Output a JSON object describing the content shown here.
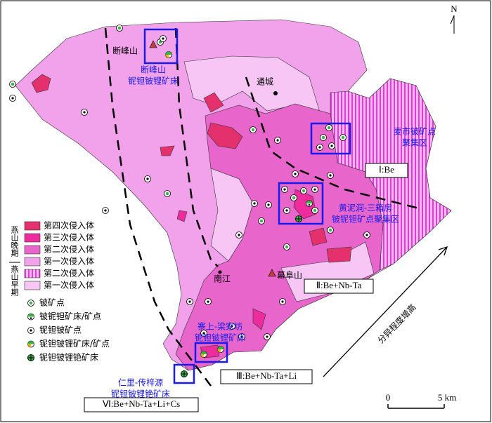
{
  "map": {
    "north": "N",
    "towns": [
      "断峰山",
      "通城",
      "南江",
      "幕阜山"
    ],
    "deposits": [
      [
        "断峰山",
        "铌钽铍锂矿床"
      ],
      [
        "麦市铍矿点",
        "聚集区"
      ],
      [
        "黄泥洞-三箱房",
        "铍铌钽矿点聚集区"
      ],
      [
        "寨上-梁家坊",
        "铌钽铍锂矿床"
      ],
      [
        "仁里-传梓源",
        "铌钽铍锂铯矿床"
      ]
    ],
    "zones": [
      "Ⅰ:Be",
      "Ⅱ:Be+Nb-Ta",
      "Ⅲ:Be+Nb-Ta+Li",
      "Ⅵ:Be+Nb-Ta+Li+Cs"
    ],
    "arrow": "分异程度增高",
    "scale": [
      "0",
      "5 km"
    ]
  },
  "legend": {
    "groups": [
      "燕山晚期",
      "燕山早期"
    ],
    "units": [
      {
        "label": "第四次侵入体",
        "color": "#e4306c"
      },
      {
        "label": "第三次侵入体",
        "color": "#ee2c9e"
      },
      {
        "label": "第二次侵入体",
        "color": "#e866cc"
      },
      {
        "label": "第一次侵入体",
        "color": "#f2a2ea"
      },
      {
        "label": "第二次侵入体",
        "color": "#e23cd6",
        "hatched": true
      },
      {
        "label": "第一次侵入体",
        "color": "#f8c6f4"
      }
    ],
    "symbols": [
      "铍矿点",
      "铍铌钽矿床/矿点",
      "铌钽铍矿点",
      "铌钽铍锂矿床/矿点",
      "铌钽铍锂铯矿床"
    ]
  }
}
